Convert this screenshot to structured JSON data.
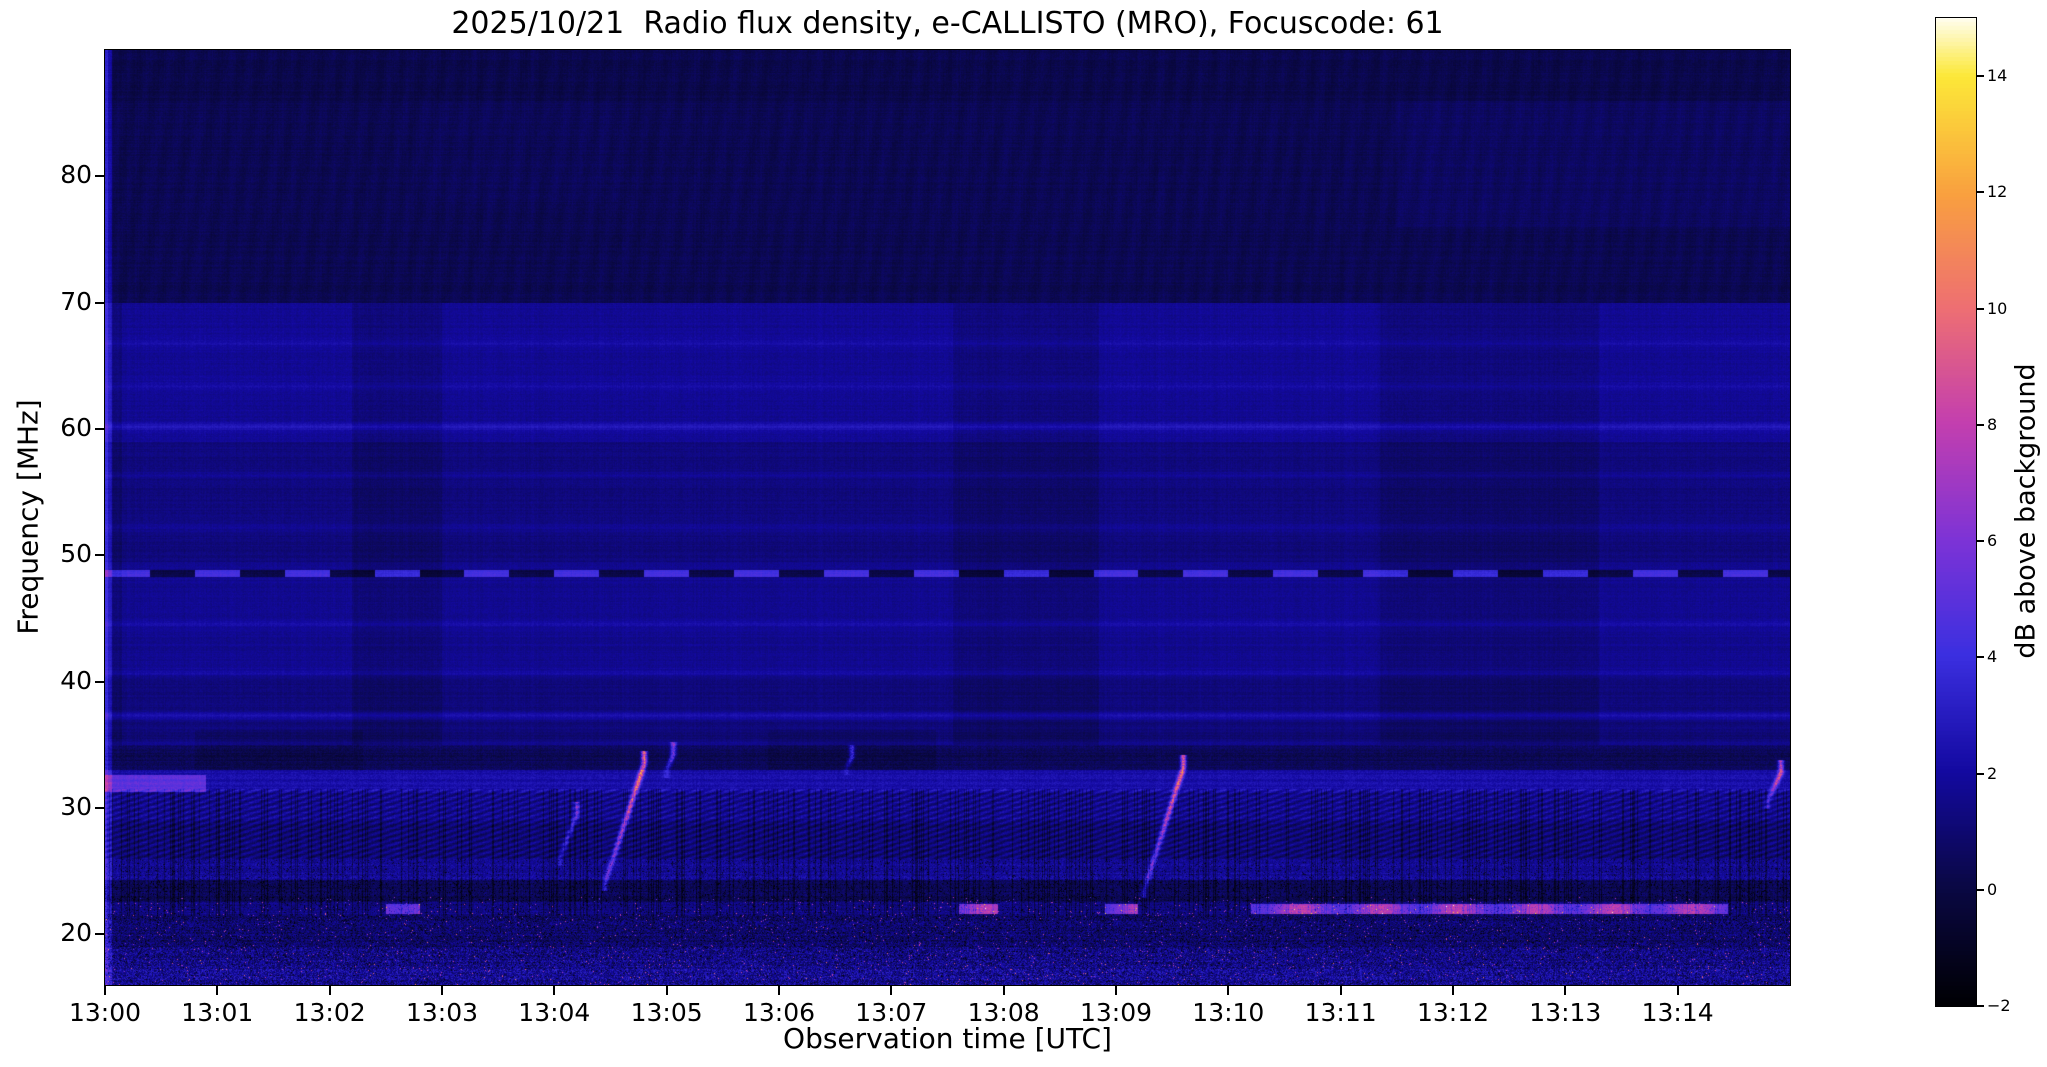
{
  "colors": {
    "figure_background": "#ffffff",
    "text": "#000000"
  },
  "chart_data": {
    "type": "heatmap",
    "title": "2025/10/21  Radio flux density, e-CALLISTO (MRO), Focuscode: 61",
    "xlabel": "Observation time [UTC]",
    "ylabel": "Frequency [MHz]",
    "x_ticks": [
      "13:00",
      "13:01",
      "13:02",
      "13:03",
      "13:04",
      "13:05",
      "13:06",
      "13:07",
      "13:08",
      "13:09",
      "13:10",
      "13:11",
      "13:12",
      "13:13",
      "13:14"
    ],
    "x_range_minutes": [
      0,
      15
    ],
    "y_ticks": [
      20,
      30,
      40,
      50,
      60,
      70,
      80
    ],
    "ylim": [
      16,
      90
    ],
    "grid": false,
    "colorbar": {
      "label": "dB above background",
      "ticks": [
        -2,
        0,
        2,
        4,
        6,
        8,
        10,
        12,
        14
      ],
      "clim": [
        -2,
        15
      ],
      "colormap": "gnuplot2-like",
      "stops": [
        [
          0.0,
          "#000004"
        ],
        [
          0.12,
          "#0a0845"
        ],
        [
          0.235,
          "#1309a0"
        ],
        [
          0.353,
          "#3b2fe0"
        ],
        [
          0.47,
          "#7d33d6"
        ],
        [
          0.59,
          "#c43fae"
        ],
        [
          0.705,
          "#ee6f72"
        ],
        [
          0.82,
          "#f9a03f"
        ],
        [
          0.94,
          "#fce838"
        ],
        [
          1.0,
          "#fffef5"
        ]
      ]
    },
    "features": {
      "description": "Solar radio spectrogram, mostly quiet dark-blue background; brighter structured bands below 35 MHz; dashed interference line near 48.6 MHz; stepped vertical gain segments between 35-70 MHz; short drifting type-III-like bursts near 13:04.5 and 13:09.3 rising from ~24 to ~33 MHz; strong speckled RFI below 22 MHz; bright 22 MHz carrier after 13:10.",
      "background_db": 0.4,
      "base_profile": [
        [
          90.0,
          70.0,
          0.35
        ],
        [
          70.0,
          59.0,
          1.25
        ],
        [
          59.0,
          49.5,
          0.75
        ],
        [
          49.5,
          41.0,
          1.15
        ],
        [
          41.0,
          36.0,
          0.7
        ],
        [
          36.0,
          33.0,
          0.45
        ],
        [
          33.0,
          31.3,
          2.3
        ],
        [
          31.3,
          29.0,
          1.7
        ],
        [
          29.0,
          26.0,
          1.1
        ],
        [
          26.0,
          24.3,
          1.9
        ],
        [
          24.3,
          22.6,
          0.4
        ],
        [
          22.6,
          21.6,
          1.4
        ],
        [
          21.6,
          19.0,
          0.9
        ],
        [
          19.0,
          17.3,
          1.6
        ],
        [
          17.3,
          16.0,
          1.2
        ]
      ],
      "spectral_lines": [
        [
          60.2,
          1.1
        ],
        [
          63.4,
          0.5
        ],
        [
          66.8,
          0.5
        ],
        [
          56.4,
          0.5
        ],
        [
          52.2,
          0.5
        ],
        [
          44.6,
          0.6
        ],
        [
          40.7,
          1.0
        ],
        [
          37.3,
          1.2
        ],
        [
          35.1,
          0.7
        ]
      ],
      "dashed_line": {
        "f": 48.6,
        "period_min": 0.4,
        "bright": 2.6,
        "dark": -1.6
      },
      "bright_time_segments": {
        "f_range": [
          35,
          70
        ],
        "boost": 0.5,
        "intervals": [
          [
            0.15,
            2.2
          ],
          [
            3.0,
            7.55
          ],
          [
            8.85,
            11.35
          ],
          [
            13.3,
            15.0
          ]
        ]
      },
      "dark_patch_33_36_intervals": [
        [
          0.8,
          2.3
        ],
        [
          5.9,
          7.4
        ]
      ],
      "bursts": [
        {
          "t": 4.45,
          "dt": 0.35,
          "f1": 24.0,
          "f2": 33.5,
          "db": 9.0
        },
        {
          "t": 9.25,
          "dt": 0.35,
          "f1": 23.5,
          "f2": 33.2,
          "db": 8.0
        },
        {
          "t": 4.05,
          "dt": 0.15,
          "f1": 26.0,
          "f2": 29.5,
          "db": 4.0
        },
        {
          "t": 14.8,
          "dt": 0.12,
          "f1": 30.5,
          "f2": 32.8,
          "db": 7.0
        },
        {
          "t": 5.0,
          "dt": 0.06,
          "f1": 33.0,
          "f2": 34.2,
          "db": 5.0
        },
        {
          "t": 6.6,
          "dt": 0.05,
          "f1": 33.2,
          "f2": 34.0,
          "db": 3.5
        }
      ],
      "line22_segments": [
        [
          2.5,
          2.8
        ],
        [
          7.6,
          7.95
        ],
        [
          8.9,
          9.2
        ],
        [
          10.2,
          14.45
        ]
      ],
      "band32_start_boost": {
        "t_end": 0.9,
        "db": 2.7
      },
      "upper_right_patch": {
        "t_start": 11.5,
        "f_range": [
          76,
          86
        ],
        "db": 0.28
      },
      "start_column_boost": 1.8
    }
  }
}
